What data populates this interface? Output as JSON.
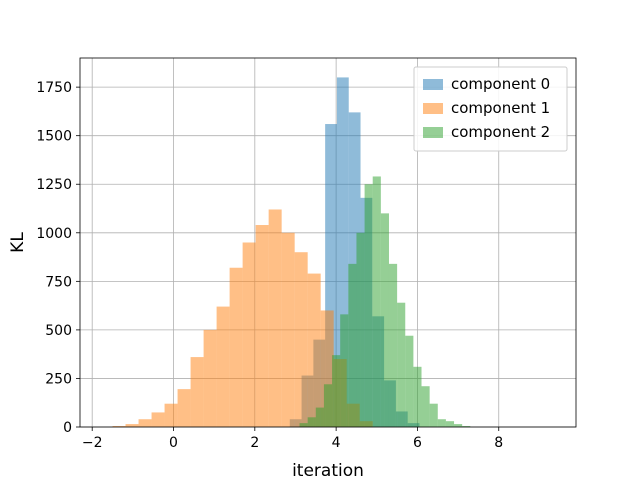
{
  "chart_data": {
    "type": "histogram",
    "title": "",
    "xlabel": "iteration",
    "ylabel": "KL",
    "xlim": [
      -2.3,
      9.9
    ],
    "ylim": [
      0,
      1900
    ],
    "xticks": [
      -2,
      0,
      2,
      4,
      6,
      8
    ],
    "xtick_labels": [
      "−2",
      "0",
      "2",
      "4",
      "6",
      "8"
    ],
    "yticks": [
      0,
      250,
      500,
      750,
      1000,
      1250,
      1500,
      1750
    ],
    "ytick_labels": [
      "0",
      "250",
      "500",
      "750",
      "1000",
      "1250",
      "1500",
      "1750"
    ],
    "grid": true,
    "legend_position": "top-right",
    "series": [
      {
        "name": "component 0",
        "color": "#1f77b4",
        "alpha": 0.5,
        "bin_edges": [
          2.86,
          3.15,
          3.44,
          3.73,
          4.02,
          4.31,
          4.6,
          4.89,
          5.18,
          5.47,
          5.76,
          6.05
        ],
        "counts": [
          40,
          265,
          450,
          1560,
          1800,
          1620,
          1180,
          570,
          240,
          80,
          20
        ]
      },
      {
        "name": "component 1",
        "color": "#ff7f0e",
        "alpha": 0.5,
        "bin_edges": [
          -1.5,
          -1.18,
          -0.86,
          -0.54,
          -0.22,
          0.1,
          0.42,
          0.74,
          1.06,
          1.38,
          1.7,
          2.02,
          2.34,
          2.66,
          2.98,
          3.3,
          3.62,
          3.94,
          4.26,
          4.58,
          4.9
        ],
        "counts": [
          5,
          15,
          40,
          75,
          120,
          195,
          360,
          500,
          620,
          820,
          950,
          1040,
          1120,
          1000,
          900,
          790,
          600,
          350,
          120,
          30
        ]
      },
      {
        "name": "component 2",
        "color": "#2ca02c",
        "alpha": 0.5,
        "bin_edges": [
          3.1,
          3.3,
          3.5,
          3.7,
          3.9,
          4.1,
          4.3,
          4.5,
          4.7,
          4.9,
          5.1,
          5.3,
          5.5,
          5.7,
          5.9,
          6.1,
          6.3,
          6.5,
          6.7,
          6.9,
          7.1,
          7.3
        ],
        "counts": [
          20,
          50,
          100,
          220,
          370,
          580,
          840,
          1000,
          1250,
          1290,
          1100,
          840,
          640,
          470,
          310,
          210,
          120,
          40,
          30,
          15,
          5
        ]
      }
    ]
  }
}
